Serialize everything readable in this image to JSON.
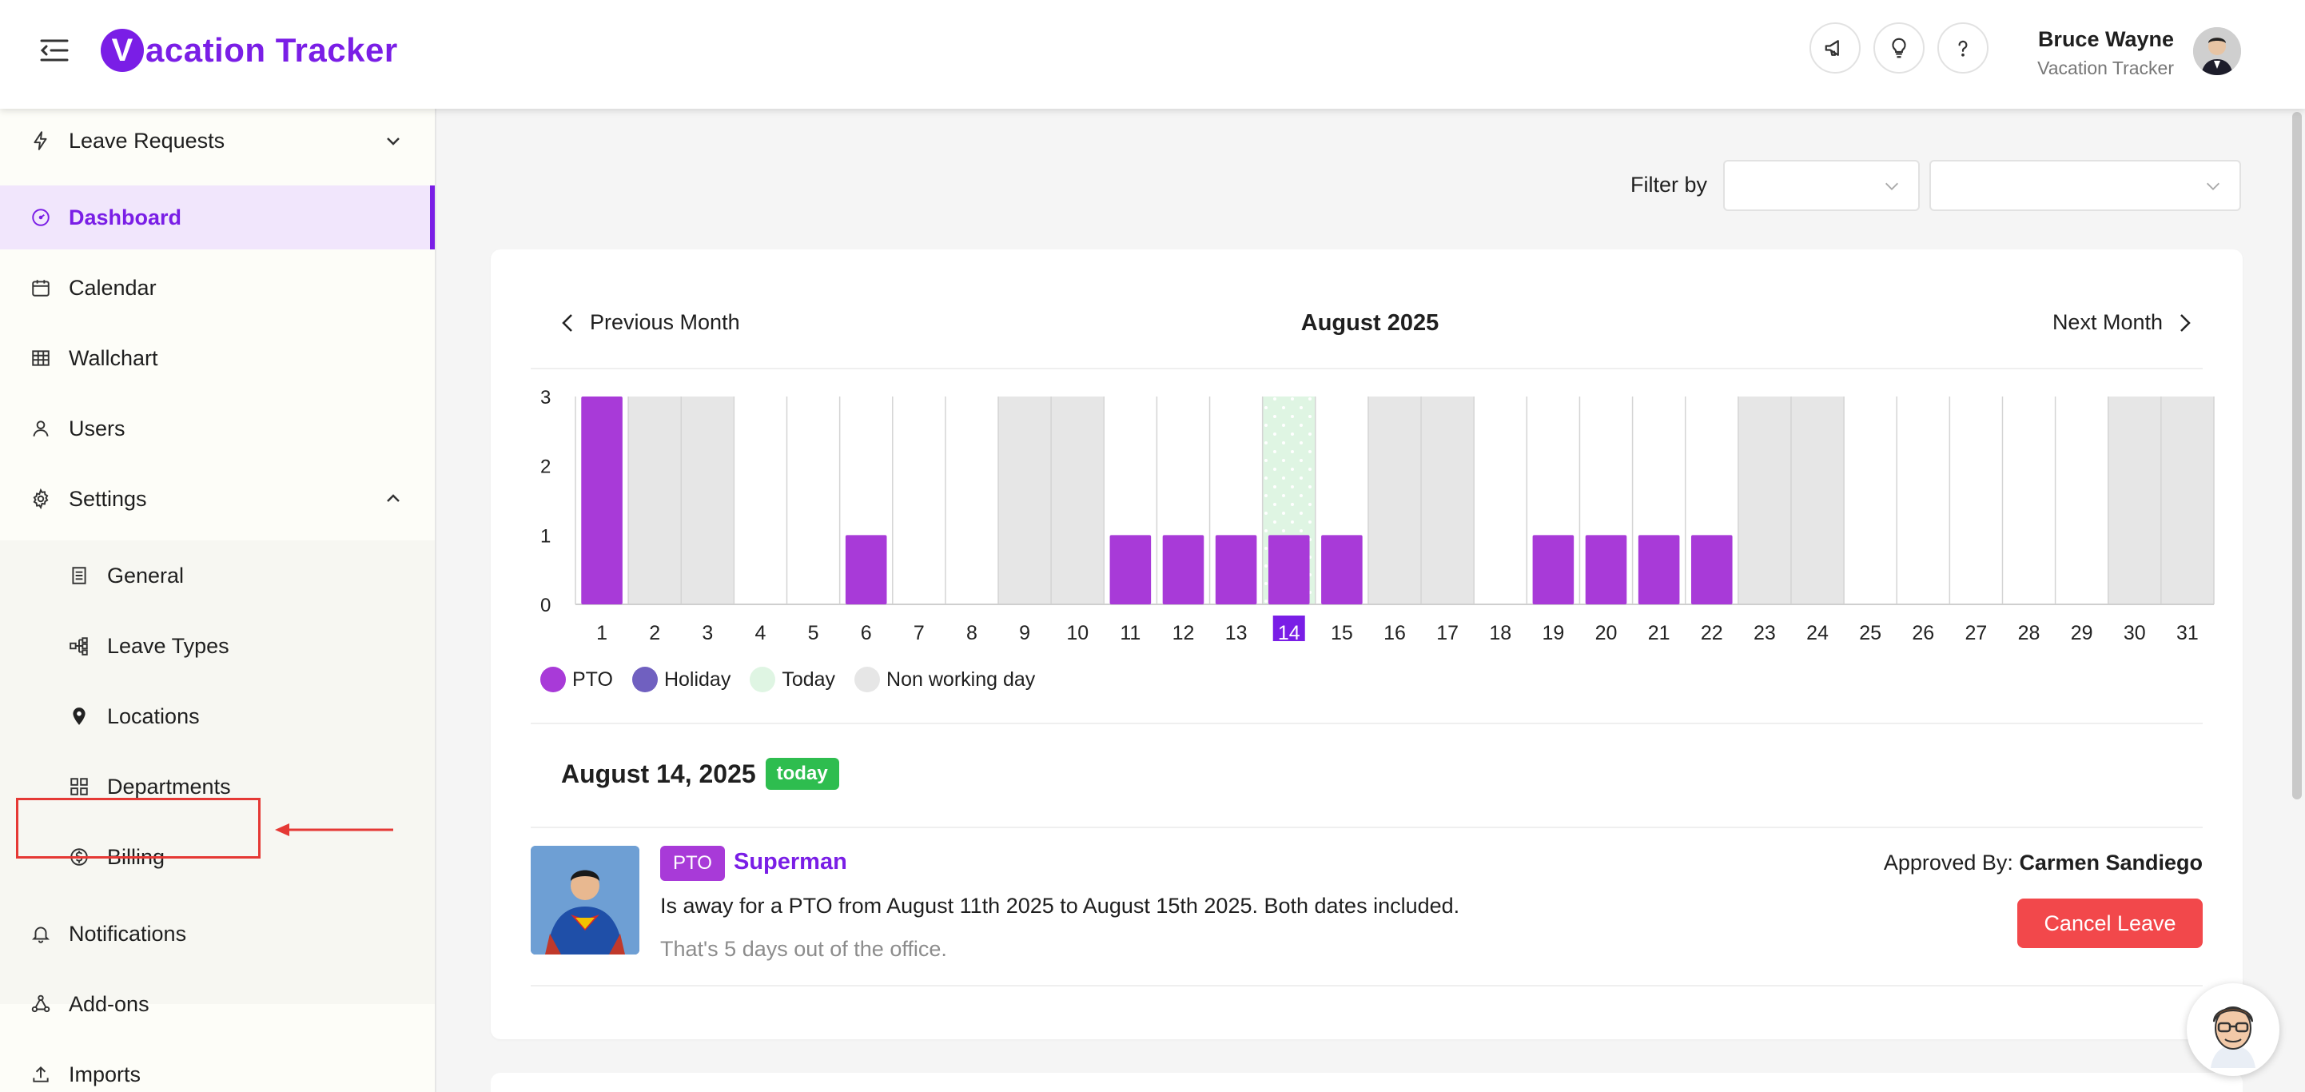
{
  "app": {
    "logo_mark": "V",
    "logo_text": "acation Tracker",
    "brand_color": "#7a1ee6"
  },
  "header": {
    "icons": [
      "megaphone-icon",
      "lightbulb-icon",
      "question-icon"
    ],
    "user_name": "Bruce Wayne",
    "user_role": "Vacation Tracker"
  },
  "sidebar": {
    "items": [
      {
        "label": "Leave Requests",
        "icon": "bolt-icon",
        "expanded": false
      },
      {
        "label": "Dashboard",
        "icon": "gauge-icon",
        "active": true
      },
      {
        "label": "Calendar",
        "icon": "calendar-icon"
      },
      {
        "label": "Wallchart",
        "icon": "grid-icon"
      },
      {
        "label": "Users",
        "icon": "user-icon"
      },
      {
        "label": "Settings",
        "icon": "gear-icon",
        "expanded": true
      }
    ],
    "sub_items": [
      {
        "label": "General",
        "icon": "document-icon"
      },
      {
        "label": "Leave Types",
        "icon": "branch-icon"
      },
      {
        "label": "Locations",
        "icon": "location-pin-icon",
        "highlighted": true
      },
      {
        "label": "Departments",
        "icon": "departments-icon"
      },
      {
        "label": "Billing",
        "icon": "dollar-icon"
      }
    ],
    "bottom_items": [
      {
        "label": "Notifications",
        "icon": "bell-icon"
      },
      {
        "label": "Add-ons",
        "icon": "nodes-icon"
      },
      {
        "label": "Imports",
        "icon": "upload-icon"
      }
    ]
  },
  "filter": {
    "label": "Filter by",
    "first_value": "",
    "second_value": ""
  },
  "calendar": {
    "prev_label": "Previous Month",
    "next_label": "Next Month",
    "month_title": "August 2025"
  },
  "chart_data": {
    "type": "bar",
    "categories": [
      "1",
      "2",
      "3",
      "4",
      "5",
      "6",
      "7",
      "8",
      "9",
      "10",
      "11",
      "12",
      "13",
      "14",
      "15",
      "16",
      "17",
      "18",
      "19",
      "20",
      "21",
      "22",
      "23",
      "24",
      "25",
      "26",
      "27",
      "28",
      "29",
      "30",
      "31"
    ],
    "values": [
      3,
      0,
      0,
      0,
      0,
      1,
      0,
      0,
      0,
      0,
      1,
      1,
      1,
      1,
      1,
      0,
      0,
      0,
      1,
      1,
      1,
      1,
      0,
      0,
      0,
      0,
      0,
      0,
      0,
      0,
      0
    ],
    "non_working_days": [
      2,
      3,
      9,
      10,
      16,
      17,
      23,
      24,
      30,
      31
    ],
    "today": 14,
    "y_ticks": [
      0,
      1,
      2,
      3
    ],
    "ylim": [
      0,
      3
    ],
    "legend": [
      "PTO",
      "Holiday",
      "Today",
      "Non working day"
    ],
    "colors": {
      "pto": "#a83ad8",
      "holiday": "#7060c0",
      "today": "#dff5e3",
      "non_working": "#e6e6e6"
    }
  },
  "selected_day": {
    "date_label": "August 14, 2025",
    "badge": "today"
  },
  "leave": {
    "type_tag": "PTO",
    "name": "Superman",
    "description": "Is away for a PTO from August 11th 2025 to August 15th 2025. Both dates included.",
    "duration_note": "That's 5 days out of the office.",
    "approved_label": "Approved By:",
    "approver": "Carmen Sandiego",
    "cancel_label": "Cancel Leave"
  }
}
